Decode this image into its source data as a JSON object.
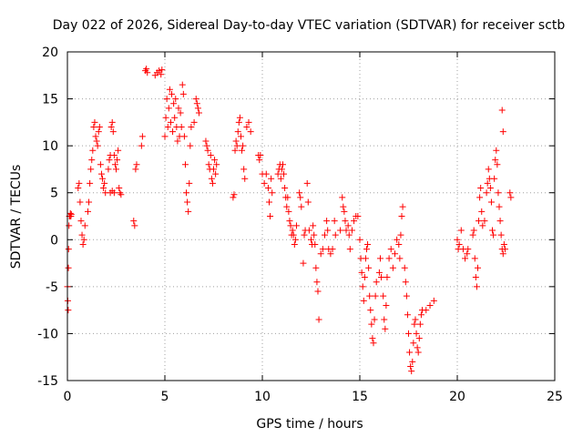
{
  "chart_data": {
    "type": "scatter",
    "title": "Day 022 of 2026, Sidereal Day-to-day VTEC variation (SDTVAR) for receiver sctb",
    "xlabel": "GPS time / hours",
    "ylabel": "SDTVAR / TECUs",
    "xlim": [
      0,
      25
    ],
    "ylim": [
      -15,
      20
    ],
    "xticks": [
      0,
      5,
      10,
      15,
      20,
      25
    ],
    "yticks": [
      -15,
      -10,
      -5,
      0,
      5,
      10,
      15,
      20
    ],
    "grid": true,
    "marker": "+",
    "color": "#ff0000",
    "series": [
      {
        "name": "SDTVAR",
        "points": [
          [
            0.0,
            -5.0
          ],
          [
            0.02,
            -6.5
          ],
          [
            0.04,
            -7.5
          ],
          [
            0.05,
            -3.0
          ],
          [
            0.06,
            -1.0
          ],
          [
            0.08,
            1.5
          ],
          [
            0.1,
            2.5
          ],
          [
            0.13,
            2.5
          ],
          [
            0.15,
            2.8
          ],
          [
            0.18,
            2.5
          ],
          [
            0.2,
            2.7
          ],
          [
            0.55,
            5.5
          ],
          [
            0.6,
            6.0
          ],
          [
            0.65,
            4.0
          ],
          [
            0.7,
            2.0
          ],
          [
            0.75,
            0.5
          ],
          [
            0.8,
            -0.5
          ],
          [
            0.85,
            0.0
          ],
          [
            0.9,
            1.5
          ],
          [
            1.05,
            3.0
          ],
          [
            1.1,
            4.0
          ],
          [
            1.15,
            6.0
          ],
          [
            1.2,
            7.5
          ],
          [
            1.25,
            8.5
          ],
          [
            1.3,
            9.5
          ],
          [
            1.35,
            12.0
          ],
          [
            1.4,
            12.5
          ],
          [
            1.45,
            11.0
          ],
          [
            1.5,
            10.5
          ],
          [
            1.55,
            10.0
          ],
          [
            1.6,
            11.5
          ],
          [
            1.65,
            12.0
          ],
          [
            1.7,
            8.0
          ],
          [
            1.75,
            7.0
          ],
          [
            1.8,
            6.5
          ],
          [
            1.85,
            5.5
          ],
          [
            1.9,
            6.0
          ],
          [
            1.95,
            5.0
          ],
          [
            2.1,
            7.5
          ],
          [
            2.15,
            8.5
          ],
          [
            2.2,
            9.0
          ],
          [
            2.25,
            12.0
          ],
          [
            2.3,
            12.5
          ],
          [
            2.35,
            11.5
          ],
          [
            2.4,
            9.0
          ],
          [
            2.45,
            8.0
          ],
          [
            2.5,
            7.5
          ],
          [
            2.55,
            8.5
          ],
          [
            2.6,
            9.5
          ],
          [
            2.65,
            5.5
          ],
          [
            2.7,
            5.0
          ],
          [
            2.75,
            4.8
          ],
          [
            2.2,
            5.0
          ],
          [
            2.3,
            5.2
          ],
          [
            2.4,
            5.0
          ],
          [
            3.4,
            2.0
          ],
          [
            3.45,
            1.5
          ],
          [
            3.5,
            7.5
          ],
          [
            3.55,
            8.0
          ],
          [
            3.8,
            10.0
          ],
          [
            3.85,
            11.0
          ],
          [
            4.0,
            18.0
          ],
          [
            4.05,
            18.2
          ],
          [
            4.1,
            17.8
          ],
          [
            4.5,
            17.5
          ],
          [
            4.6,
            17.8
          ],
          [
            4.7,
            18.0
          ],
          [
            4.8,
            17.6
          ],
          [
            4.85,
            18.1
          ],
          [
            5.0,
            11.0
          ],
          [
            5.05,
            13.0
          ],
          [
            5.1,
            15.0
          ],
          [
            5.15,
            12.0
          ],
          [
            5.2,
            14.0
          ],
          [
            5.25,
            16.0
          ],
          [
            5.3,
            12.5
          ],
          [
            5.35,
            15.5
          ],
          [
            5.4,
            11.5
          ],
          [
            5.45,
            14.5
          ],
          [
            5.5,
            13.0
          ],
          [
            5.55,
            15.0
          ],
          [
            5.6,
            12.0
          ],
          [
            5.65,
            10.5
          ],
          [
            5.7,
            14.0
          ],
          [
            5.75,
            11.0
          ],
          [
            5.8,
            13.5
          ],
          [
            5.85,
            12.0
          ],
          [
            5.9,
            16.5
          ],
          [
            5.95,
            15.5
          ],
          [
            6.0,
            11.0
          ],
          [
            6.05,
            8.0
          ],
          [
            6.1,
            5.0
          ],
          [
            6.15,
            4.0
          ],
          [
            6.2,
            3.0
          ],
          [
            6.25,
            6.0
          ],
          [
            6.3,
            10.0
          ],
          [
            6.35,
            12.0
          ],
          [
            6.5,
            12.5
          ],
          [
            6.6,
            15.0
          ],
          [
            6.65,
            14.5
          ],
          [
            6.7,
            14.0
          ],
          [
            6.75,
            13.5
          ],
          [
            7.1,
            10.5
          ],
          [
            7.15,
            10.0
          ],
          [
            7.2,
            9.5
          ],
          [
            7.25,
            8.0
          ],
          [
            7.3,
            7.5
          ],
          [
            7.35,
            9.0
          ],
          [
            7.4,
            6.5
          ],
          [
            7.45,
            6.0
          ],
          [
            7.5,
            7.5
          ],
          [
            7.55,
            8.5
          ],
          [
            7.6,
            7.0
          ],
          [
            7.65,
            8.0
          ],
          [
            8.5,
            4.5
          ],
          [
            8.55,
            4.8
          ],
          [
            8.6,
            9.5
          ],
          [
            8.65,
            10.5
          ],
          [
            8.7,
            10.0
          ],
          [
            8.75,
            11.5
          ],
          [
            8.8,
            12.5
          ],
          [
            8.85,
            13.0
          ],
          [
            8.9,
            11.0
          ],
          [
            8.95,
            9.5
          ],
          [
            9.0,
            10.0
          ],
          [
            9.05,
            7.5
          ],
          [
            9.1,
            6.5
          ],
          [
            9.2,
            12.0
          ],
          [
            9.3,
            12.5
          ],
          [
            9.4,
            11.5
          ],
          [
            9.8,
            9.0
          ],
          [
            9.85,
            8.5
          ],
          [
            9.9,
            9.0
          ],
          [
            10.0,
            7.0
          ],
          [
            10.1,
            6.0
          ],
          [
            10.2,
            7.0
          ],
          [
            10.3,
            5.5
          ],
          [
            10.35,
            4.0
          ],
          [
            10.4,
            2.5
          ],
          [
            10.45,
            6.5
          ],
          [
            10.5,
            5.0
          ],
          [
            10.8,
            7.0
          ],
          [
            10.85,
            7.5
          ],
          [
            10.9,
            8.0
          ],
          [
            10.95,
            6.5
          ],
          [
            11.0,
            7.5
          ],
          [
            11.05,
            8.0
          ],
          [
            11.1,
            7.0
          ],
          [
            11.15,
            5.5
          ],
          [
            11.2,
            4.5
          ],
          [
            11.25,
            3.5
          ],
          [
            11.3,
            4.5
          ],
          [
            11.35,
            3.0
          ],
          [
            11.4,
            2.0
          ],
          [
            11.45,
            1.5
          ],
          [
            11.5,
            0.5
          ],
          [
            11.55,
            1.0
          ],
          [
            11.6,
            0.5
          ],
          [
            11.65,
            -0.5
          ],
          [
            11.7,
            0.0
          ],
          [
            11.75,
            1.5
          ],
          [
            11.9,
            5.0
          ],
          [
            11.95,
            4.5
          ],
          [
            12.0,
            3.5
          ],
          [
            12.1,
            -2.5
          ],
          [
            12.15,
            0.5
          ],
          [
            12.2,
            1.0
          ],
          [
            12.3,
            6.0
          ],
          [
            12.35,
            4.0
          ],
          [
            12.4,
            1.0
          ],
          [
            12.5,
            0.0
          ],
          [
            12.55,
            -0.5
          ],
          [
            12.6,
            1.5
          ],
          [
            12.65,
            0.5
          ],
          [
            12.7,
            -0.5
          ],
          [
            12.75,
            -3.0
          ],
          [
            12.8,
            -4.5
          ],
          [
            12.85,
            -5.5
          ],
          [
            12.9,
            -8.5
          ],
          [
            13.0,
            -1.5
          ],
          [
            13.1,
            -1.0
          ],
          [
            13.2,
            0.5
          ],
          [
            13.3,
            2.0
          ],
          [
            13.35,
            1.0
          ],
          [
            13.4,
            -1.0
          ],
          [
            13.5,
            -1.5
          ],
          [
            13.6,
            -1.0
          ],
          [
            13.7,
            2.0
          ],
          [
            13.75,
            0.5
          ],
          [
            14.0,
            1.0
          ],
          [
            14.1,
            4.5
          ],
          [
            14.15,
            3.5
          ],
          [
            14.2,
            3.0
          ],
          [
            14.25,
            2.0
          ],
          [
            14.3,
            1.0
          ],
          [
            14.4,
            1.5
          ],
          [
            14.45,
            0.5
          ],
          [
            14.5,
            -1.0
          ],
          [
            14.6,
            1.0
          ],
          [
            14.7,
            2.0
          ],
          [
            14.8,
            2.5
          ],
          [
            14.9,
            2.5
          ],
          [
            15.0,
            0.0
          ],
          [
            15.05,
            -2.0
          ],
          [
            15.1,
            -3.5
          ],
          [
            15.15,
            -5.0
          ],
          [
            15.2,
            -6.5
          ],
          [
            15.25,
            -4.0
          ],
          [
            15.3,
            -2.0
          ],
          [
            15.35,
            -1.0
          ],
          [
            15.4,
            -0.5
          ],
          [
            15.45,
            -3.0
          ],
          [
            15.5,
            -6.0
          ],
          [
            15.55,
            -7.5
          ],
          [
            15.6,
            -9.0
          ],
          [
            15.65,
            -10.5
          ],
          [
            15.7,
            -11.0
          ],
          [
            15.75,
            -8.5
          ],
          [
            15.8,
            -6.0
          ],
          [
            15.85,
            -4.5
          ],
          [
            16.0,
            -3.5
          ],
          [
            16.05,
            -2.0
          ],
          [
            16.1,
            -4.0
          ],
          [
            16.2,
            -6.0
          ],
          [
            16.25,
            -8.5
          ],
          [
            16.3,
            -9.5
          ],
          [
            16.35,
            -7.0
          ],
          [
            16.4,
            -4.0
          ],
          [
            16.5,
            -2.0
          ],
          [
            16.6,
            -1.0
          ],
          [
            16.7,
            -3.0
          ],
          [
            16.8,
            -1.5
          ],
          [
            16.9,
            0.0
          ],
          [
            17.0,
            -0.5
          ],
          [
            17.05,
            -2.0
          ],
          [
            17.1,
            0.5
          ],
          [
            17.15,
            2.5
          ],
          [
            17.2,
            3.5
          ],
          [
            17.3,
            -3.0
          ],
          [
            17.35,
            -4.5
          ],
          [
            17.4,
            -6.0
          ],
          [
            17.45,
            -8.0
          ],
          [
            17.5,
            -10.0
          ],
          [
            17.55,
            -12.0
          ],
          [
            17.6,
            -13.5
          ],
          [
            17.65,
            -14.0
          ],
          [
            17.7,
            -13.0
          ],
          [
            17.75,
            -11.0
          ],
          [
            17.8,
            -9.0
          ],
          [
            17.85,
            -8.5
          ],
          [
            17.9,
            -10.0
          ],
          [
            17.95,
            -11.5
          ],
          [
            18.0,
            -12.0
          ],
          [
            18.05,
            -10.5
          ],
          [
            18.1,
            -9.0
          ],
          [
            18.15,
            -8.0
          ],
          [
            18.2,
            -7.5
          ],
          [
            18.4,
            -7.5
          ],
          [
            18.6,
            -7.0
          ],
          [
            18.8,
            -6.5
          ],
          [
            20.0,
            0.0
          ],
          [
            20.05,
            -1.0
          ],
          [
            20.1,
            -0.5
          ],
          [
            20.2,
            1.0
          ],
          [
            20.3,
            -1.0
          ],
          [
            20.4,
            -2.0
          ],
          [
            20.5,
            -1.5
          ],
          [
            20.55,
            -1.0
          ],
          [
            20.8,
            0.5
          ],
          [
            20.85,
            1.0
          ],
          [
            20.9,
            -2.0
          ],
          [
            20.95,
            -4.0
          ],
          [
            21.0,
            -5.0
          ],
          [
            21.05,
            -3.0
          ],
          [
            21.1,
            2.0
          ],
          [
            21.15,
            4.5
          ],
          [
            21.2,
            5.5
          ],
          [
            21.25,
            3.0
          ],
          [
            21.3,
            1.5
          ],
          [
            21.4,
            2.0
          ],
          [
            21.5,
            5.0
          ],
          [
            21.55,
            6.0
          ],
          [
            21.6,
            7.5
          ],
          [
            21.65,
            6.5
          ],
          [
            21.7,
            5.5
          ],
          [
            21.75,
            4.0
          ],
          [
            21.8,
            1.0
          ],
          [
            21.85,
            0.5
          ],
          [
            21.9,
            6.5
          ],
          [
            21.95,
            8.5
          ],
          [
            22.0,
            9.5
          ],
          [
            22.05,
            8.0
          ],
          [
            22.1,
            5.0
          ],
          [
            22.15,
            3.5
          ],
          [
            22.2,
            2.0
          ],
          [
            22.25,
            0.5
          ],
          [
            22.3,
            -1.0
          ],
          [
            22.35,
            -1.5
          ],
          [
            22.4,
            -0.5
          ],
          [
            22.45,
            -1.0
          ],
          [
            22.3,
            13.8
          ],
          [
            22.35,
            11.5
          ],
          [
            22.7,
            5.0
          ],
          [
            22.75,
            4.5
          ]
        ]
      }
    ]
  }
}
